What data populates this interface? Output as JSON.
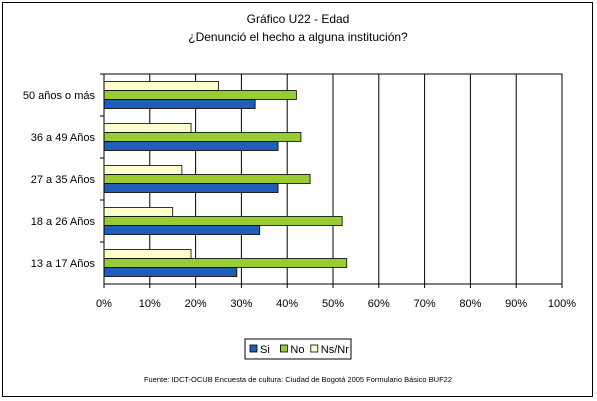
{
  "chart_data": {
    "type": "bar",
    "orientation": "horizontal",
    "title": "Gráfico U22 - Edad",
    "subtitle": "¿Denunció el hecho a alguna institución?",
    "categories": [
      "50 años o más",
      "36 a 49 Años",
      "27 a 35 Años",
      "18 a 26 Años",
      "13 a 17 Años"
    ],
    "series": [
      {
        "name": "Si",
        "color": "#1f5db8",
        "values": [
          33,
          38,
          38,
          34,
          29
        ]
      },
      {
        "name": "No",
        "color": "#99cc33",
        "values": [
          42,
          43,
          45,
          52,
          53
        ]
      },
      {
        "name": "Ns/Nr",
        "color": "#ffffcc",
        "values": [
          25,
          19,
          17,
          15,
          19
        ]
      }
    ],
    "xlim": [
      0,
      100
    ],
    "xticks": [
      "0%",
      "10%",
      "20%",
      "30%",
      "40%",
      "50%",
      "60%",
      "70%",
      "80%",
      "90%",
      "100%"
    ],
    "grid": true,
    "legend_position": "bottom",
    "source": "Fuente: IDCT-OCUB Encuesta de cultura: Ciudad de Bogotá 2005 Formulario Básico  BUF22"
  }
}
